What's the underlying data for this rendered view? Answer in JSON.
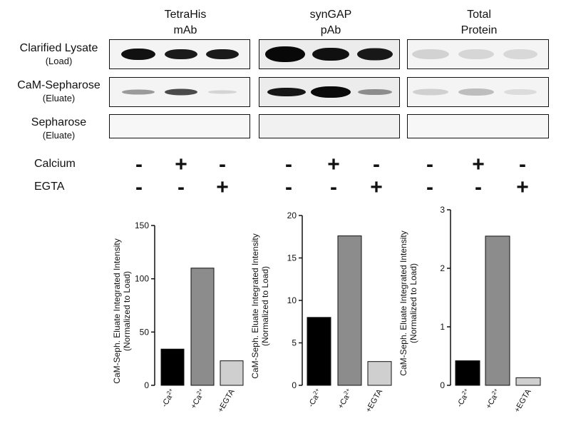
{
  "columns": [
    {
      "line1": "TetraHis",
      "line2": "mAb"
    },
    {
      "line1": "synGAP",
      "line2": "pAb"
    },
    {
      "line1": "Total",
      "line2": "Protein"
    }
  ],
  "rows": [
    {
      "main": "Clarified Lysate",
      "sub": "(Load)"
    },
    {
      "main": "CaM-Sepharose",
      "sub": "(Eluate)"
    },
    {
      "main": "Sepharose",
      "sub": "(Eluate)"
    }
  ],
  "conditions": [
    {
      "label": "Calcium",
      "signs": [
        "-",
        "+",
        "-"
      ]
    },
    {
      "label": "EGTA",
      "signs": [
        "-",
        "-",
        "+"
      ]
    }
  ],
  "chart_data": [
    {
      "type": "bar",
      "categories": [
        "-Ca2+",
        "+Ca2+",
        "+EGTA"
      ],
      "values": [
        34,
        110,
        23
      ],
      "ylabel": "CaM-Seph. Eluate Integrated Intensity (Normalized to Load)",
      "ylim": [
        0,
        150
      ],
      "yticks": [
        0,
        50,
        100,
        150
      ],
      "colors": [
        "#000000",
        "#8c8c8c",
        "#cfcfcf"
      ]
    },
    {
      "type": "bar",
      "categories": [
        "-Ca2+",
        "+Ca2+",
        "+EGTA"
      ],
      "values": [
        8,
        17.6,
        2.8
      ],
      "ylabel": "CaM-Seph. Eluate Integrated Intensity (Normalized to Load)",
      "ylim": [
        0,
        20
      ],
      "yticks": [
        0,
        5,
        10,
        15,
        20
      ],
      "colors": [
        "#000000",
        "#8c8c8c",
        "#cfcfcf"
      ]
    },
    {
      "type": "bar",
      "categories": [
        "-Ca2+",
        "+Ca2+",
        "+EGTA"
      ],
      "values": [
        0.42,
        2.55,
        0.13
      ],
      "ylabel": "CaM-Seph. Eluate Integrated Intensity (Normalized to Load)",
      "ylim": [
        0,
        3
      ],
      "yticks": [
        0,
        1,
        2,
        3
      ],
      "colors": [
        "#000000",
        "#8c8c8c",
        "#cfcfcf"
      ]
    }
  ],
  "tick_label_parts": [
    {
      "prefix": "-Ca",
      "sup": "2+"
    },
    {
      "prefix": "+Ca",
      "sup": "2+"
    },
    {
      "prefix": "+EGTA",
      "sup": ""
    }
  ]
}
